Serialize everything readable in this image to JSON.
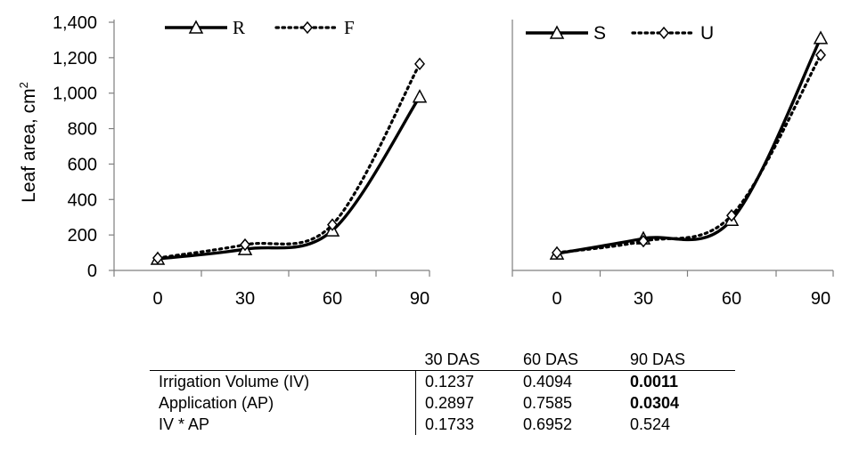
{
  "ylabel": "Leaf  area, cm",
  "ylabel_sup": "2",
  "chart_data": [
    {
      "type": "line",
      "x": [
        0,
        30,
        60,
        90
      ],
      "ylim": [
        0,
        1400
      ],
      "yticks": [
        "0",
        "200",
        "400",
        "600",
        "800",
        "1,000",
        "1,200",
        "1,400"
      ],
      "xticks": [
        "0",
        "30",
        "60",
        "90"
      ],
      "grid": false,
      "legend_position": "top",
      "series": [
        {
          "name": "R",
          "values": [
            65,
            120,
            225,
            980
          ],
          "style": "solid",
          "marker": "triangle",
          "color": "#000000"
        },
        {
          "name": "F",
          "values": [
            70,
            145,
            258,
            1165
          ],
          "style": "dotted",
          "marker": "diamond",
          "color": "#000000"
        }
      ]
    },
    {
      "type": "line",
      "x": [
        0,
        30,
        60,
        90
      ],
      "ylim": [
        0,
        1400
      ],
      "xticks": [
        "0",
        "30",
        "60",
        "90"
      ],
      "grid": false,
      "legend_position": "top",
      "series": [
        {
          "name": "S",
          "values": [
            95,
            180,
            285,
            1310
          ],
          "style": "solid",
          "marker": "triangle",
          "color": "#000000"
        },
        {
          "name": "U",
          "values": [
            100,
            165,
            310,
            1215
          ],
          "style": "dotted",
          "marker": "diamond",
          "color": "#000000"
        }
      ]
    }
  ],
  "table": {
    "headers": [
      "",
      "30 DAS",
      "60 DAS",
      "90 DAS"
    ],
    "rows": [
      {
        "label": "Irrigation Volume (IV)",
        "values": [
          "0.1237",
          "0.4094",
          "0.0011"
        ],
        "bold": [
          false,
          false,
          true
        ]
      },
      {
        "label": "Application (AP)",
        "values": [
          "0.2897",
          "0.7585",
          "0.0304"
        ],
        "bold": [
          false,
          false,
          true
        ]
      },
      {
        "label": "IV * AP",
        "values": [
          "0.1733",
          "0.6952",
          "0.524"
        ],
        "bold": [
          false,
          false,
          false
        ]
      }
    ]
  }
}
